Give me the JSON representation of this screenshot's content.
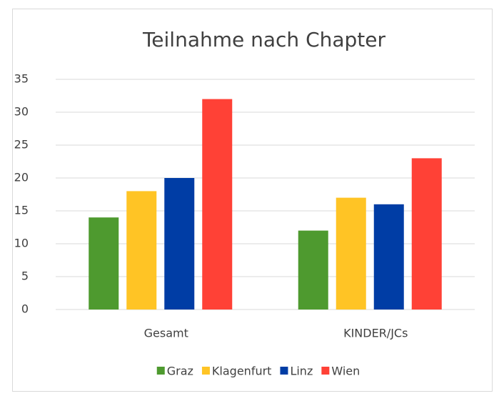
{
  "chart_data": {
    "type": "bar",
    "title": "Teilnahme nach Chapter",
    "categories": [
      "Gesamt",
      "KINDER/JCs"
    ],
    "series": [
      {
        "name": "Graz",
        "color": "#4e9a2f",
        "values": [
          14,
          12
        ]
      },
      {
        "name": "Klagenfurt",
        "color": "#ffc425",
        "values": [
          18,
          17
        ]
      },
      {
        "name": "Linz",
        "color": "#003da5",
        "values": [
          20,
          16
        ]
      },
      {
        "name": "Wien",
        "color": "#ff4136",
        "values": [
          32,
          23
        ]
      }
    ],
    "ylim": [
      0,
      35
    ],
    "yticks": [
      0,
      5,
      10,
      15,
      20,
      25,
      30,
      35
    ],
    "grid": true,
    "legend": "bottom"
  }
}
